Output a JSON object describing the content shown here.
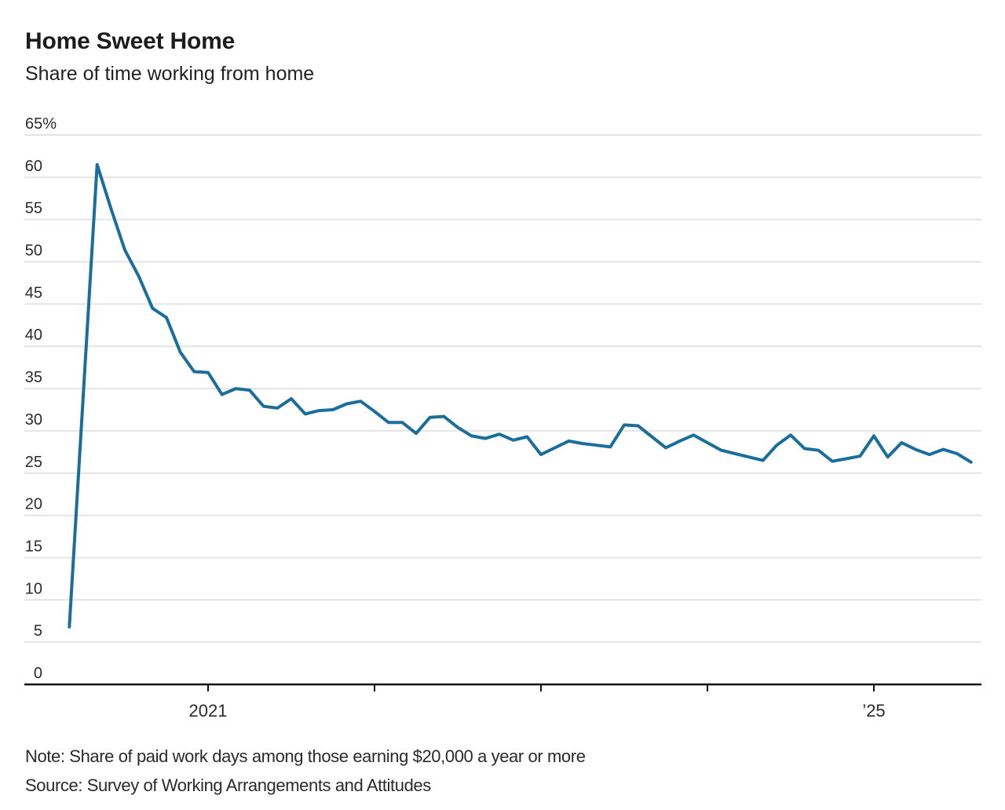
{
  "header": {
    "title": "Home Sweet Home",
    "subtitle": "Share of time working from home"
  },
  "footer": {
    "note": "Note: Share of paid work days among those earning $20,000 a year or more",
    "source": "Source: Survey of Working Arrangements and Attitudes"
  },
  "colors": {
    "line": "#1a6e9c",
    "grid": "#e4e4e4",
    "axis": "#111111",
    "text": "#2b2b2b"
  },
  "chart_data": {
    "type": "line",
    "title": "Home Sweet Home",
    "subtitle": "Share of time working from home",
    "xlabel": "",
    "ylabel": "%",
    "ylim": [
      0,
      65
    ],
    "grid": "horizontal",
    "legend": "none",
    "y_ticks": [
      {
        "value": 65,
        "label": "65%"
      },
      {
        "value": 60,
        "label": "60"
      },
      {
        "value": 55,
        "label": "55"
      },
      {
        "value": 50,
        "label": "50"
      },
      {
        "value": 45,
        "label": "45"
      },
      {
        "value": 40,
        "label": "40"
      },
      {
        "value": 35,
        "label": "35"
      },
      {
        "value": 30,
        "label": "30"
      },
      {
        "value": 25,
        "label": "25"
      },
      {
        "value": 20,
        "label": "20"
      },
      {
        "value": 15,
        "label": "15"
      },
      {
        "value": 10,
        "label": "10"
      },
      {
        "value": 5,
        "label": "5"
      },
      {
        "value": 0,
        "label": "0"
      }
    ],
    "x_ticks": [
      {
        "year": 2021,
        "label": "2021"
      },
      {
        "year": 2022,
        "label": ""
      },
      {
        "year": 2023,
        "label": ""
      },
      {
        "year": 2024,
        "label": ""
      },
      {
        "year": 2025,
        "label": "’25"
      }
    ],
    "x": [
      "2020-03",
      "2020-05",
      "2020-06",
      "2020-07",
      "2020-08",
      "2020-09",
      "2020-10",
      "2020-11",
      "2020-12",
      "2021-01",
      "2021-02",
      "2021-03",
      "2021-04",
      "2021-05",
      "2021-06",
      "2021-07",
      "2021-08",
      "2021-09",
      "2021-10",
      "2021-11",
      "2021-12",
      "2022-01",
      "2022-02",
      "2022-03",
      "2022-04",
      "2022-05",
      "2022-06",
      "2022-07",
      "2022-08",
      "2022-09",
      "2022-10",
      "2022-11",
      "2022-12",
      "2023-01",
      "2023-02",
      "2023-03",
      "2023-04",
      "2023-05",
      "2023-06",
      "2023-07",
      "2023-08",
      "2023-09",
      "2023-10",
      "2023-11",
      "2023-12",
      "2024-01",
      "2024-02",
      "2024-03",
      "2024-04",
      "2024-05",
      "2024-06",
      "2024-07",
      "2024-08",
      "2024-09",
      "2024-10",
      "2024-11",
      "2024-12",
      "2025-01",
      "2025-02",
      "2025-03",
      "2025-04",
      "2025-05",
      "2025-06",
      "2025-07",
      "2025-08"
    ],
    "series": [
      {
        "name": "Share of time working from home",
        "color": "#1a6e9c",
        "values": [
          6.8,
          61.5,
          56.3,
          51.4,
          48.3,
          44.5,
          43.4,
          39.3,
          37.0,
          36.9,
          34.3,
          35.0,
          34.8,
          32.9,
          32.7,
          33.8,
          32.0,
          32.4,
          32.5,
          33.2,
          33.5,
          32.3,
          31.0,
          31.0,
          29.7,
          31.6,
          31.7,
          30.4,
          29.4,
          29.1,
          29.6,
          28.9,
          29.3,
          27.2,
          28.0,
          28.8,
          28.5,
          28.3,
          28.1,
          30.7,
          30.6,
          29.3,
          28.0,
          28.8,
          29.5,
          28.6,
          27.7,
          27.3,
          26.9,
          26.5,
          28.3,
          29.5,
          27.9,
          27.7,
          26.4,
          26.7,
          27.0,
          29.4,
          26.9,
          28.6,
          27.8,
          27.2,
          27.8,
          27.3,
          26.3
        ]
      }
    ]
  }
}
